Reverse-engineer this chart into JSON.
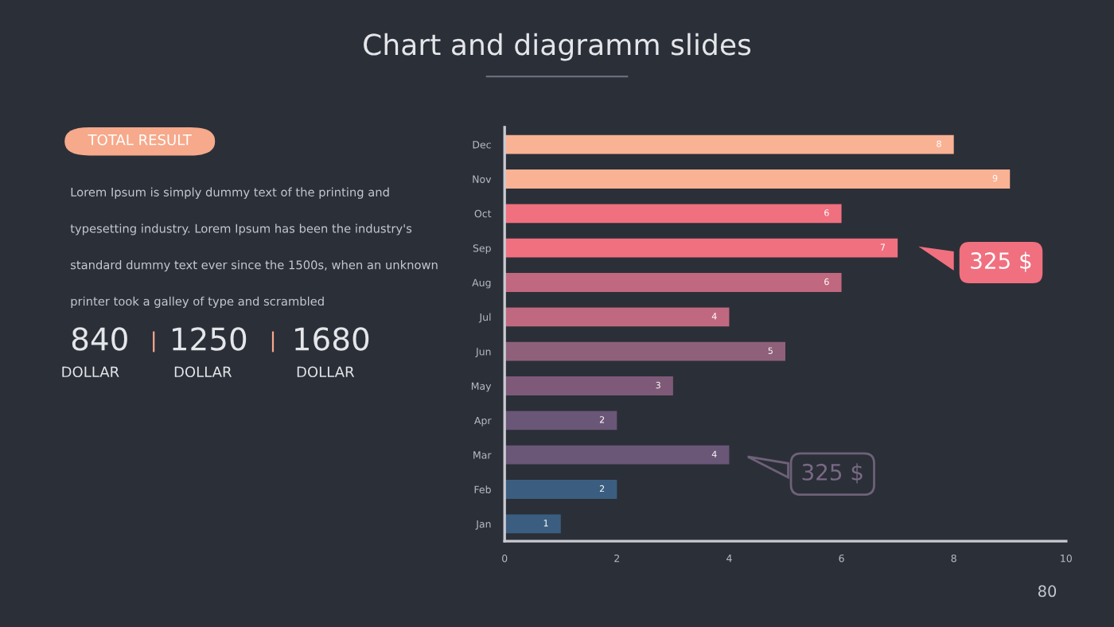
{
  "chart_data": [
    {
      "type": "other",
      "title": "Chart and diagramm slides",
      "annotations": [
        "TOTAL RESULT",
        "Lorem Ipsum is simply dummy text of the printing and typesetting industry. Lorem Ipsum has been the industry's standard dummy text ever since the 1500s, when an unknown printer took a galley of type and scrambled",
        "840",
        "DOLLAR",
        "1250",
        "DOLLAR",
        "1680",
        "DOLLAR",
        "80"
      ]
    },
    {
      "type": "bar",
      "orientation": "horizontal",
      "categories": [
        "Dec",
        "Nov",
        "Oct",
        "Sep",
        "Aug",
        "Jul",
        "Jun",
        "May",
        "Apr",
        "Mar",
        "Feb",
        "Jan"
      ],
      "values": [
        8,
        9,
        6,
        7,
        6,
        4,
        5,
        3,
        2,
        4,
        2,
        1
      ],
      "colors": [
        "#f9b294",
        "#f9b294",
        "#f0707f",
        "#f0707f",
        "#c0687f",
        "#c0687f",
        "#8f6079",
        "#7e5a78",
        "#6a5677",
        "#6a5677",
        "#3b5e80",
        "#3b5e80"
      ],
      "xlim": [
        0,
        10
      ],
      "xticks": [
        0,
        2,
        4,
        6,
        8,
        10
      ],
      "data_labels": true,
      "grid": false,
      "annotations": [
        "325 $",
        "325 $"
      ]
    }
  ]
}
